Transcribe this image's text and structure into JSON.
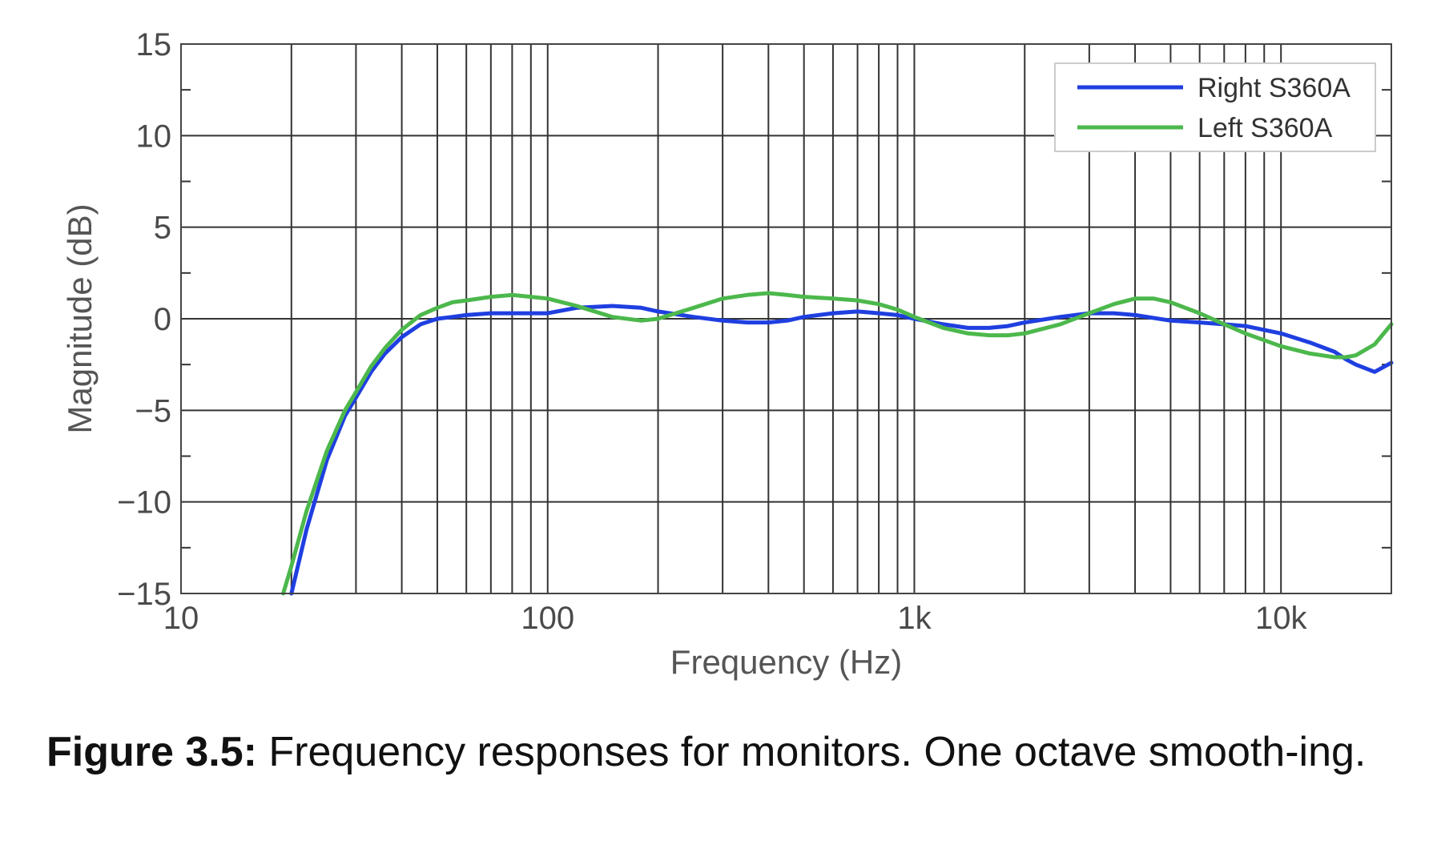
{
  "chart_data": {
    "type": "line",
    "xlabel": "Frequency (Hz)",
    "ylabel": "Magnitude (dB)",
    "xscale": "log",
    "xlim": [
      10,
      20000
    ],
    "ylim": [
      -15,
      15
    ],
    "grid": true,
    "legend_position": "top-right",
    "xticks": [
      {
        "value": 10,
        "label": "10"
      },
      {
        "value": 100,
        "label": "100"
      },
      {
        "value": 1000,
        "label": "1k"
      },
      {
        "value": 10000,
        "label": "10k"
      }
    ],
    "yticks": [
      {
        "value": 15,
        "label": "15"
      },
      {
        "value": 10,
        "label": "10"
      },
      {
        "value": 5,
        "label": "5"
      },
      {
        "value": 0,
        "label": "0"
      },
      {
        "value": -5,
        "label": "−5"
      },
      {
        "value": -10,
        "label": "−10"
      },
      {
        "value": -15,
        "label": "−15"
      }
    ],
    "series": [
      {
        "name": "Right S360A",
        "color": "#1f3fe0",
        "x": [
          20,
          22,
          25,
          28,
          30,
          33,
          36,
          40,
          45,
          50,
          55,
          60,
          70,
          80,
          90,
          100,
          120,
          150,
          180,
          200,
          250,
          300,
          350,
          400,
          450,
          500,
          600,
          700,
          800,
          900,
          1000,
          1200,
          1400,
          1600,
          1800,
          2000,
          2500,
          3000,
          3500,
          4000,
          5000,
          6000,
          7000,
          8000,
          10000,
          12000,
          14000,
          15000,
          16000,
          18000,
          20000
        ],
        "y": [
          -15.0,
          -11.5,
          -7.7,
          -5.3,
          -4.3,
          -2.9,
          -1.9,
          -1.0,
          -0.3,
          0.0,
          0.1,
          0.2,
          0.3,
          0.3,
          0.3,
          0.3,
          0.6,
          0.7,
          0.6,
          0.4,
          0.1,
          -0.1,
          -0.2,
          -0.2,
          -0.1,
          0.1,
          0.3,
          0.4,
          0.3,
          0.2,
          0.0,
          -0.3,
          -0.5,
          -0.5,
          -0.4,
          -0.2,
          0.1,
          0.3,
          0.3,
          0.2,
          -0.1,
          -0.2,
          -0.3,
          -0.4,
          -0.8,
          -1.3,
          -1.8,
          -2.2,
          -2.5,
          -2.9,
          -2.4
        ]
      },
      {
        "name": "Left S360A",
        "color": "#4cb84c",
        "x": [
          19,
          20,
          22,
          25,
          28,
          30,
          33,
          36,
          40,
          45,
          50,
          55,
          60,
          70,
          80,
          90,
          100,
          120,
          150,
          180,
          200,
          250,
          300,
          350,
          400,
          450,
          500,
          600,
          700,
          800,
          900,
          1000,
          1200,
          1400,
          1600,
          1800,
          2000,
          2500,
          3000,
          3500,
          4000,
          4500,
          5000,
          6000,
          7000,
          8000,
          10000,
          12000,
          14000,
          15000,
          16000,
          18000,
          20000
        ],
        "y": [
          -15.0,
          -13.5,
          -10.5,
          -7.2,
          -5.0,
          -4.0,
          -2.6,
          -1.6,
          -0.6,
          0.2,
          0.6,
          0.9,
          1.0,
          1.2,
          1.3,
          1.2,
          1.1,
          0.7,
          0.1,
          -0.1,
          0.0,
          0.6,
          1.1,
          1.3,
          1.4,
          1.3,
          1.2,
          1.1,
          1.0,
          0.8,
          0.5,
          0.1,
          -0.5,
          -0.8,
          -0.9,
          -0.9,
          -0.8,
          -0.3,
          0.3,
          0.8,
          1.1,
          1.1,
          0.9,
          0.3,
          -0.3,
          -0.8,
          -1.5,
          -1.9,
          -2.1,
          -2.1,
          -2.0,
          -1.4,
          -0.3
        ]
      }
    ]
  },
  "caption": {
    "label": "Figure 3.5:",
    "text": "Frequency responses for monitors. One octave smooth-ing."
  }
}
